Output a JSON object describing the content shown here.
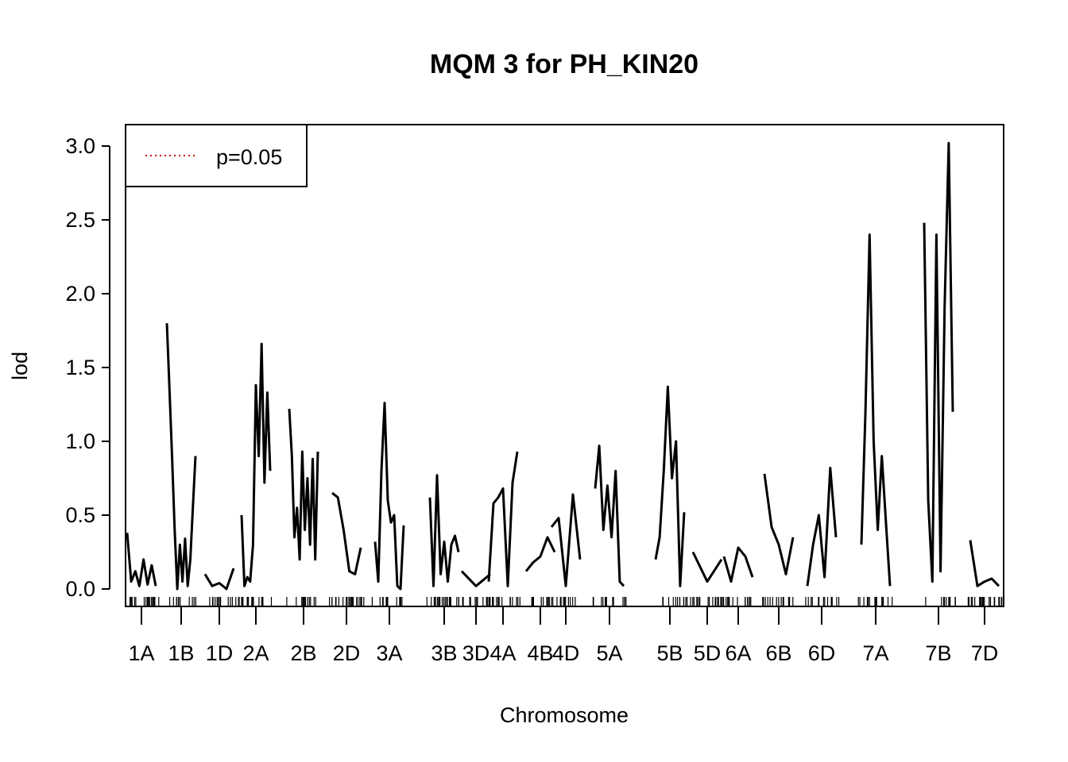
{
  "chart_data": {
    "type": "line",
    "title": "MQM 3 for PH_KIN20",
    "xlabel": "Chromosome",
    "ylabel": "lod",
    "ylim": [
      0,
      3.0
    ],
    "yticks": [
      "0.0",
      "0.5",
      "1.0",
      "1.5",
      "2.0",
      "2.5",
      "3.0"
    ],
    "ytick_values": [
      0,
      0.5,
      1.0,
      1.5,
      2.0,
      2.5,
      3.0
    ],
    "legend": {
      "position": "top-left",
      "entries": [
        {
          "label": "p=0.05",
          "style": "dotted",
          "color": "#cc0000"
        }
      ]
    },
    "chromosomes": [
      "1A",
      "1B",
      "1D",
      "2A",
      "2B",
      "2D",
      "3A",
      "3B",
      "3D",
      "4A",
      "4B",
      "4D",
      "5A",
      "5B",
      "5D",
      "6A",
      "6B",
      "6D",
      "7A",
      "7B",
      "7D"
    ],
    "series": [
      {
        "color": "#000000",
        "points": [
          [
            "1A",
            0.38
          ],
          [
            "1A",
            0.05
          ],
          [
            "1A",
            0.12
          ],
          [
            "1A",
            0.02
          ],
          [
            "1A",
            0.2
          ],
          [
            "1A",
            0.03
          ],
          [
            "1A",
            0.16
          ],
          [
            "1A",
            0.02
          ],
          [
            "1B",
            1.8
          ],
          [
            "1B",
            1.35
          ],
          [
            "1B",
            0.9
          ],
          [
            "1B",
            0.4
          ],
          [
            "1B",
            0.0
          ],
          [
            "1B",
            0.3
          ],
          [
            "1B",
            0.05
          ],
          [
            "1B",
            0.34
          ],
          [
            "1B",
            0.02
          ],
          [
            "1B",
            0.2
          ],
          [
            "1B",
            0.55
          ],
          [
            "1B",
            0.9
          ],
          [
            "1D",
            0.1
          ],
          [
            "1D",
            0.02
          ],
          [
            "1D",
            0.04
          ],
          [
            "1D",
            0.0
          ],
          [
            "1D",
            0.14
          ],
          [
            "2A",
            0.5
          ],
          [
            "2A",
            0.02
          ],
          [
            "2A",
            0.08
          ],
          [
            "2A",
            0.05
          ],
          [
            "2A",
            0.3
          ],
          [
            "2A",
            1.38
          ],
          [
            "2A",
            0.9
          ],
          [
            "2A",
            1.66
          ],
          [
            "2A",
            0.72
          ],
          [
            "2A",
            1.33
          ],
          [
            "2A",
            0.8
          ],
          [
            "2B",
            1.22
          ],
          [
            "2B",
            0.9
          ],
          [
            "2B",
            0.35
          ],
          [
            "2B",
            0.55
          ],
          [
            "2B",
            0.2
          ],
          [
            "2B",
            0.93
          ],
          [
            "2B",
            0.4
          ],
          [
            "2B",
            0.75
          ],
          [
            "2B",
            0.3
          ],
          [
            "2B",
            0.88
          ],
          [
            "2B",
            0.2
          ],
          [
            "2B",
            0.93
          ],
          [
            "2D",
            0.65
          ],
          [
            "2D",
            0.62
          ],
          [
            "2D",
            0.4
          ],
          [
            "2D",
            0.12
          ],
          [
            "2D",
            0.1
          ],
          [
            "2D",
            0.28
          ],
          [
            "3A",
            0.32
          ],
          [
            "3A",
            0.05
          ],
          [
            "3A",
            0.8
          ],
          [
            "3A",
            1.26
          ],
          [
            "3A",
            0.6
          ],
          [
            "3A",
            0.45
          ],
          [
            "3A",
            0.5
          ],
          [
            "3A",
            0.02
          ],
          [
            "3A",
            0.0
          ],
          [
            "3A",
            0.43
          ],
          [
            "3B",
            0.62
          ],
          [
            "3B",
            0.02
          ],
          [
            "3B",
            0.77
          ],
          [
            "3B",
            0.1
          ],
          [
            "3B",
            0.32
          ],
          [
            "3B",
            0.05
          ],
          [
            "3B",
            0.3
          ],
          [
            "3B",
            0.36
          ],
          [
            "3B",
            0.25
          ],
          [
            "3D",
            0.12
          ],
          [
            "3D",
            0.02
          ],
          [
            "3D",
            0.1
          ],
          [
            "4A",
            0.05
          ],
          [
            "4A",
            0.58
          ],
          [
            "4A",
            0.62
          ],
          [
            "4A",
            0.68
          ],
          [
            "4A",
            0.02
          ],
          [
            "4A",
            0.72
          ],
          [
            "4A",
            0.93
          ],
          [
            "4B",
            0.12
          ],
          [
            "4B",
            0.18
          ],
          [
            "4B",
            0.22
          ],
          [
            "4B",
            0.35
          ],
          [
            "4B",
            0.25
          ],
          [
            "4D",
            0.42
          ],
          [
            "4D",
            0.48
          ],
          [
            "4D",
            0.02
          ],
          [
            "4D",
            0.64
          ],
          [
            "4D",
            0.2
          ],
          [
            "5A",
            0.68
          ],
          [
            "5A",
            0.97
          ],
          [
            "5A",
            0.4
          ],
          [
            "5A",
            0.7
          ],
          [
            "5A",
            0.35
          ],
          [
            "5A",
            0.8
          ],
          [
            "5A",
            0.05
          ],
          [
            "5A",
            0.02
          ],
          [
            "5B",
            0.2
          ],
          [
            "5B",
            0.35
          ],
          [
            "5B",
            0.8
          ],
          [
            "5B",
            1.37
          ],
          [
            "5B",
            0.75
          ],
          [
            "5B",
            1.0
          ],
          [
            "5B",
            0.02
          ],
          [
            "5B",
            0.52
          ],
          [
            "5D",
            0.25
          ],
          [
            "5D",
            0.05
          ],
          [
            "5D",
            0.2
          ],
          [
            "6A",
            0.22
          ],
          [
            "6A",
            0.05
          ],
          [
            "6A",
            0.28
          ],
          [
            "6A",
            0.22
          ],
          [
            "6A",
            0.08
          ],
          [
            "6B",
            0.78
          ],
          [
            "6B",
            0.42
          ],
          [
            "6B",
            0.3
          ],
          [
            "6B",
            0.1
          ],
          [
            "6B",
            0.35
          ],
          [
            "6D",
            0.02
          ],
          [
            "6D",
            0.3
          ],
          [
            "6D",
            0.5
          ],
          [
            "6D",
            0.08
          ],
          [
            "6D",
            0.82
          ],
          [
            "6D",
            0.35
          ],
          [
            "7A",
            0.3
          ],
          [
            "7A",
            1.2
          ],
          [
            "7A",
            2.4
          ],
          [
            "7A",
            1.0
          ],
          [
            "7A",
            0.4
          ],
          [
            "7A",
            0.9
          ],
          [
            "7A",
            0.45
          ],
          [
            "7A",
            0.02
          ],
          [
            "7B",
            2.48
          ],
          [
            "7B",
            0.6
          ],
          [
            "7B",
            0.05
          ],
          [
            "7B",
            2.4
          ],
          [
            "7B",
            0.12
          ],
          [
            "7B",
            1.9
          ],
          [
            "7B",
            3.02
          ],
          [
            "7B",
            1.2
          ],
          [
            "7D",
            0.33
          ],
          [
            "7D",
            0.02
          ],
          [
            "7D",
            0.05
          ],
          [
            "7D",
            0.07
          ],
          [
            "7D",
            0.02
          ]
        ]
      }
    ]
  }
}
